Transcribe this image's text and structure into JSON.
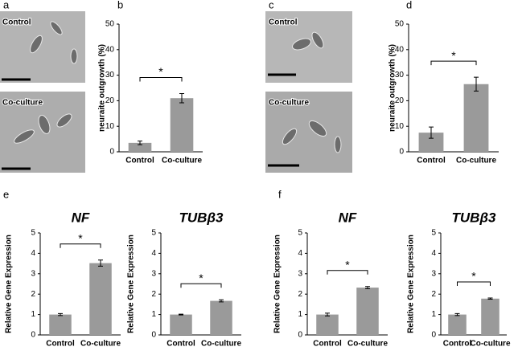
{
  "panel_labels": [
    "a",
    "b",
    "c",
    "d",
    "e",
    "f"
  ],
  "images": [
    {
      "label": "Control"
    },
    {
      "label": "Co-culture"
    },
    {
      "label": "Control"
    },
    {
      "label": "Co-culture"
    }
  ],
  "chart_data": [
    {
      "type": "bar",
      "ylabel": "neuraite outgrowth (%)",
      "categories": [
        "Control",
        "Co-culture"
      ],
      "values": [
        3.5,
        21
      ],
      "errors": [
        0.7,
        1.8
      ],
      "color": "#9a9a9a",
      "ylim": [
        0,
        50
      ],
      "yticks": [
        0,
        10,
        20,
        30,
        40,
        50
      ],
      "annotation": "*"
    },
    {
      "type": "bar",
      "ylabel": "neuraite outgrowth (%)",
      "categories": [
        "Control",
        "Co-culture"
      ],
      "values": [
        7.5,
        26.5
      ],
      "errors": [
        2.2,
        2.7
      ],
      "color": "#9a9a9a",
      "ylim": [
        0,
        50
      ],
      "yticks": [
        0,
        10,
        20,
        30,
        40,
        50
      ],
      "annotation": "*"
    },
    {
      "type": "bar",
      "title": "NF",
      "ylabel": "Relative Gene Expression",
      "categories": [
        "Control",
        "Co-culture"
      ],
      "values": [
        1,
        3.52
      ],
      "errors": [
        0.05,
        0.15
      ],
      "color": "#9a9a9a",
      "ylim": [
        0,
        5
      ],
      "yticks": [
        0,
        1,
        2,
        3,
        4,
        5
      ],
      "annotation": "*"
    },
    {
      "type": "bar",
      "title": "TUBβ3",
      "ylabel": "Relative Gene Expression",
      "categories": [
        "Control",
        "Co-culture"
      ],
      "values": [
        1,
        1.67
      ],
      "errors": [
        0.02,
        0.05
      ],
      "color": "#9a9a9a",
      "ylim": [
        0,
        5
      ],
      "yticks": [
        0,
        1,
        2,
        3,
        4,
        5
      ],
      "annotation": "*"
    },
    {
      "type": "bar",
      "title": "NF",
      "ylabel": "Relative Gene Expression",
      "categories": [
        "Control",
        "Co-culture"
      ],
      "values": [
        1,
        2.32
      ],
      "errors": [
        0.07,
        0.05
      ],
      "color": "#9a9a9a",
      "ylim": [
        0,
        5
      ],
      "yticks": [
        0,
        1,
        2,
        3,
        4,
        5
      ],
      "annotation": "*"
    },
    {
      "type": "bar",
      "title": "TUBβ3",
      "ylabel": "Relative Gene Expression",
      "categories": [
        "Control",
        "Co-culture"
      ],
      "values": [
        1,
        1.78
      ],
      "errors": [
        0.05,
        0.03
      ],
      "color": "#9a9a9a",
      "ylim": [
        0,
        5
      ],
      "yticks": [
        0,
        1,
        2,
        3,
        4,
        5
      ],
      "annotation": "*"
    }
  ]
}
